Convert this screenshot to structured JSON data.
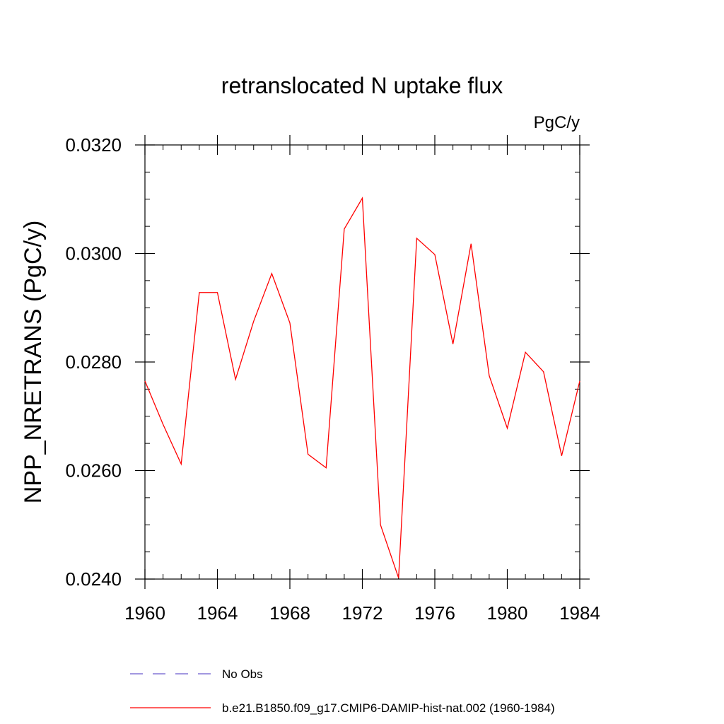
{
  "chart_data": {
    "type": "line",
    "title": "retranslocated N uptake flux",
    "units_label": "PgC/y",
    "ylabel": "NPP_NRETRANS  (PgC/y)",
    "xlabel": "",
    "xlim": [
      1960,
      1984
    ],
    "ylim": [
      0.024,
      0.032
    ],
    "x_ticks": [
      1960,
      1964,
      1968,
      1972,
      1976,
      1980,
      1984
    ],
    "x_tick_labels": [
      "1960",
      "1964",
      "1968",
      "1972",
      "1976",
      "1980",
      "1984"
    ],
    "y_ticks": [
      0.024,
      0.026,
      0.028,
      0.03,
      0.032
    ],
    "y_tick_labels": [
      "0.0240",
      "0.0260",
      "0.0280",
      "0.0300",
      "0.0320"
    ],
    "grid": false,
    "legend_position": "bottom",
    "series": [
      {
        "name": "No Obs",
        "color": "#6a5acd",
        "dash": "dashed",
        "x": [],
        "values": []
      },
      {
        "name": "b.e21.B1850.f09_g17.CMIP6-DAMIP-hist-nat.002 (1960-1984)",
        "color": "#ff0000",
        "dash": "solid",
        "x": [
          1960,
          1961,
          1962,
          1963,
          1964,
          1965,
          1966,
          1967,
          1968,
          1969,
          1970,
          1971,
          1972,
          1973,
          1974,
          1975,
          1976,
          1977,
          1978,
          1979,
          1980,
          1981,
          1982,
          1983,
          1984
        ],
        "values": [
          0.02765,
          0.02685,
          0.02612,
          0.02928,
          0.02928,
          0.02768,
          0.02875,
          0.02963,
          0.02872,
          0.0263,
          0.02605,
          0.03045,
          0.03102,
          0.025,
          0.02402,
          0.03028,
          0.02998,
          0.02833,
          0.03018,
          0.02775,
          0.02678,
          0.02818,
          0.02782,
          0.02627,
          0.02765
        ]
      }
    ]
  }
}
